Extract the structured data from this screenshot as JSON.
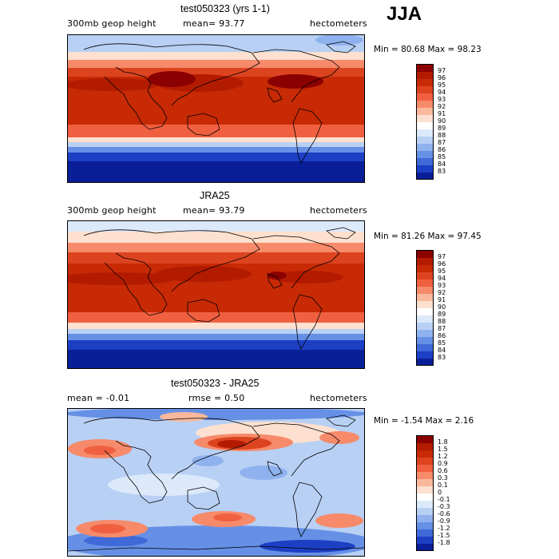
{
  "season": "JJA",
  "panels": [
    {
      "id": "model",
      "title": "test050323 (yrs 1-1)",
      "left_label": "300mb geop height",
      "mid_label": "mean=  93.77",
      "right_label": "hectometers",
      "minmax": "Min =  80.68 Max =  98.23",
      "stats": {
        "mean": 93.77,
        "min": 80.68,
        "max": 98.23
      },
      "colorbar": [
        "97",
        "96",
        "95",
        "94",
        "93",
        "92",
        "91",
        "90",
        "89",
        "88",
        "87",
        "86",
        "85",
        "84",
        "83"
      ],
      "colors": [
        "#8b0000",
        "#b31b00",
        "#c72a04",
        "#dc4420",
        "#f06040",
        "#f68a6a",
        "#f9b89c",
        "#fde0cf",
        "#ffffff",
        "#dce9fb",
        "#b8d0f4",
        "#8fb2ee",
        "#6690e6",
        "#3f6ad8",
        "#1c3fc4",
        "#0a1f97"
      ]
    },
    {
      "id": "obs",
      "title": "JRA25",
      "left_label": "300mb geop height",
      "mid_label": "mean=  93.79",
      "right_label": "hectometers",
      "minmax": "Min =  81.26 Max =  97.45",
      "stats": {
        "mean": 93.79,
        "min": 81.26,
        "max": 97.45
      },
      "colorbar": [
        "97",
        "96",
        "95",
        "94",
        "93",
        "92",
        "91",
        "90",
        "89",
        "88",
        "87",
        "86",
        "85",
        "84",
        "83"
      ],
      "colors": [
        "#8b0000",
        "#b31b00",
        "#c72a04",
        "#dc4420",
        "#f06040",
        "#f68a6a",
        "#f9b89c",
        "#fde0cf",
        "#ffffff",
        "#dce9fb",
        "#b8d0f4",
        "#8fb2ee",
        "#6690e6",
        "#3f6ad8",
        "#1c3fc4",
        "#0a1f97"
      ]
    },
    {
      "id": "diff",
      "title": "test050323 - JRA25",
      "left_label": "mean =  -0.01",
      "mid_label": "rmse =   0.50",
      "right_label": "hectometers",
      "minmax": "Min = -1.54 Max =   2.16",
      "stats": {
        "mean": -0.01,
        "rmse": 0.5,
        "min": -1.54,
        "max": 2.16
      },
      "colorbar": [
        "1.8",
        "1.5",
        "1.2",
        "0.9",
        "0.6",
        "0.3",
        "0.1",
        "0",
        "-0.1",
        "-0.3",
        "-0.6",
        "-0.9",
        "-1.2",
        "-1.5",
        "-1.8"
      ],
      "colors": [
        "#8b0000",
        "#b31b00",
        "#c72a04",
        "#dc4420",
        "#f06040",
        "#f68a6a",
        "#f9b89c",
        "#fde0cf",
        "#ffffff",
        "#dce9fb",
        "#b8d0f4",
        "#8fb2ee",
        "#6690e6",
        "#3f6ad8",
        "#1c3fc4",
        "#0a1f97"
      ]
    }
  ],
  "chart_data": [
    {
      "type": "heatmap",
      "title": "test050323 (yrs 1-1)",
      "variable": "300mb geop height",
      "units": "hectometers",
      "season": "JJA",
      "mean": 93.77,
      "min": 80.68,
      "max": 98.23,
      "contour_levels": [
        83,
        84,
        85,
        86,
        87,
        88,
        89,
        90,
        91,
        92,
        93,
        94,
        95,
        96,
        97
      ]
    },
    {
      "type": "heatmap",
      "title": "JRA25",
      "variable": "300mb geop height",
      "units": "hectometers",
      "season": "JJA",
      "mean": 93.79,
      "min": 81.26,
      "max": 97.45,
      "contour_levels": [
        83,
        84,
        85,
        86,
        87,
        88,
        89,
        90,
        91,
        92,
        93,
        94,
        95,
        96,
        97
      ]
    },
    {
      "type": "heatmap",
      "title": "test050323 - JRA25",
      "units": "hectometers",
      "season": "JJA",
      "mean": -0.01,
      "rmse": 0.5,
      "min": -1.54,
      "max": 2.16,
      "contour_levels": [
        -1.8,
        -1.5,
        -1.2,
        -0.9,
        -0.6,
        -0.3,
        -0.1,
        0,
        0.1,
        0.3,
        0.6,
        0.9,
        1.2,
        1.5,
        1.8
      ]
    }
  ]
}
